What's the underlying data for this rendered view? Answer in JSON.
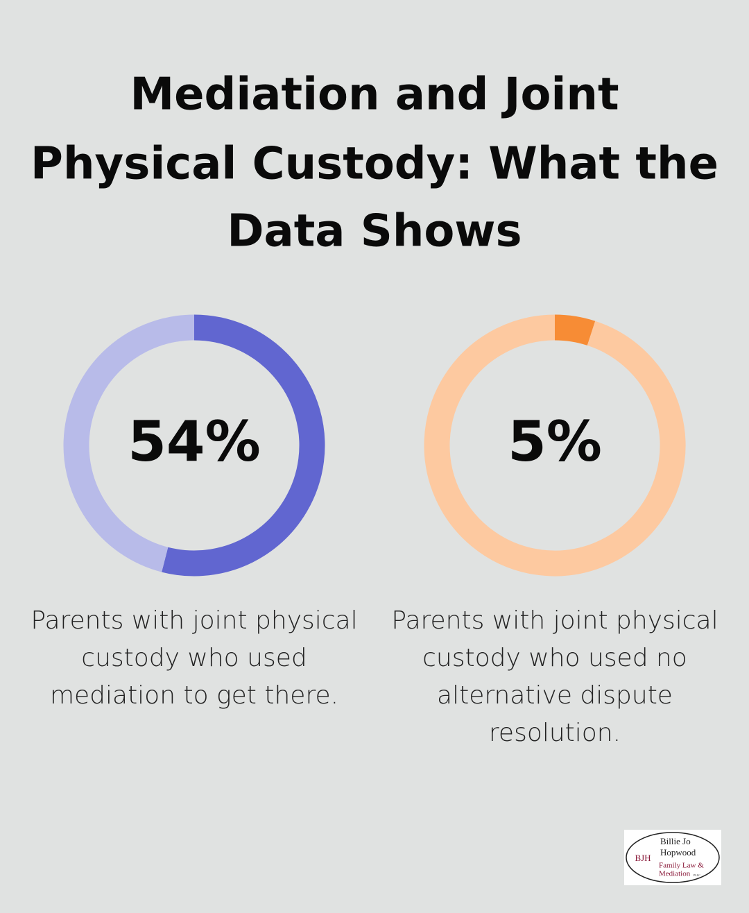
{
  "title": [
    "Mediation and Joint",
    "Physical Custody: What the",
    "Data Shows"
  ],
  "chart_data": [
    {
      "type": "donut",
      "categories": [
        "Used mediation",
        null
      ],
      "values": [
        54,
        46
      ],
      "value_labels": [
        "54%",
        null
      ],
      "colors": [
        "#6166d0",
        "#b8bbe9"
      ],
      "caption": [
        "Parents with joint physical",
        "custody who used",
        "mediation to get there."
      ]
    },
    {
      "type": "donut",
      "categories": [
        "No alternative dispute resolution",
        null
      ],
      "values": [
        5,
        95
      ],
      "value_labels": [
        "5%",
        null
      ],
      "colors": [
        "#f78c35",
        "#fdc9a0"
      ],
      "caption": [
        "Parents with joint physical",
        "custody who used no",
        "alternative dispute",
        "resolution."
      ]
    }
  ],
  "logo": {
    "initials": "BJH",
    "name": [
      "Billie Jo",
      "Hopwood"
    ],
    "firm": [
      "Family Law &",
      "Mediation"
    ],
    "suffix": "PLLC"
  }
}
